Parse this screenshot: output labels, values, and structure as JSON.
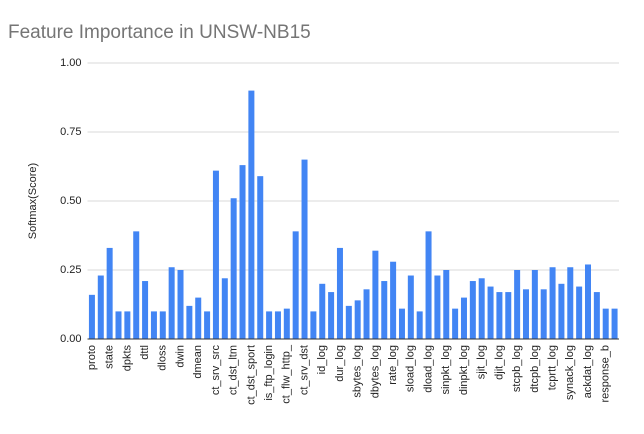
{
  "chart_data": {
    "type": "bar",
    "title": "Feature Importance in UNSW-NB15",
    "y_label": "Softmax(Score)",
    "categories": [
      "proto",
      null,
      "state",
      null,
      "dpkts",
      null,
      "dttl",
      null,
      "dloss",
      null,
      "dwin",
      null,
      "dmean",
      null,
      "ct_srv_src",
      null,
      "ct_dst_ltm",
      null,
      "ct_dst_sport",
      null,
      "is_ftp_login",
      null,
      "ct_flw_http_",
      null,
      "ct_srv_dst",
      null,
      "id_log",
      null,
      "dur_log",
      null,
      "sbytes_log",
      null,
      "dbytes_log",
      null,
      "rate_log",
      null,
      "sload_log",
      null,
      "dload_log",
      null,
      "sinpkt_log",
      null,
      "dinpkt_log",
      null,
      "sjit_log",
      null,
      "djit_log",
      null,
      "stcpb_log",
      null,
      "dtcpb_log",
      null,
      "tcprtt_log",
      null,
      "synack_log",
      null,
      "ackdat_log",
      null,
      "response_b",
      null
    ],
    "values": [
      0.16,
      0.23,
      0.33,
      0.1,
      0.1,
      0.39,
      0.21,
      0.1,
      0.1,
      0.26,
      0.25,
      0.12,
      0.15,
      0.1,
      0.61,
      0.22,
      0.51,
      0.63,
      0.9,
      0.59,
      0.1,
      0.1,
      0.11,
      0.39,
      0.65,
      0.1,
      0.2,
      0.17,
      0.33,
      0.12,
      0.14,
      0.18,
      0.32,
      0.21,
      0.28,
      0.11,
      0.23,
      0.1,
      0.39,
      0.23,
      0.25,
      0.11,
      0.15,
      0.21,
      0.22,
      0.19,
      0.17,
      0.17,
      0.25,
      0.18,
      0.25,
      0.18,
      0.26,
      0.2,
      0.26,
      0.19,
      0.27,
      0.17,
      0.11,
      0.11
    ],
    "color": "#4285f4",
    "ylim": [
      0,
      1
    ],
    "yticks": [
      {
        "value": 0,
        "label": "0.00"
      },
      {
        "value": 0.25,
        "label": "0.25"
      },
      {
        "value": 0.5,
        "label": "0.50"
      },
      {
        "value": 0.75,
        "label": "0.75"
      },
      {
        "value": 1,
        "label": "1.00"
      }
    ],
    "grid": true
  }
}
